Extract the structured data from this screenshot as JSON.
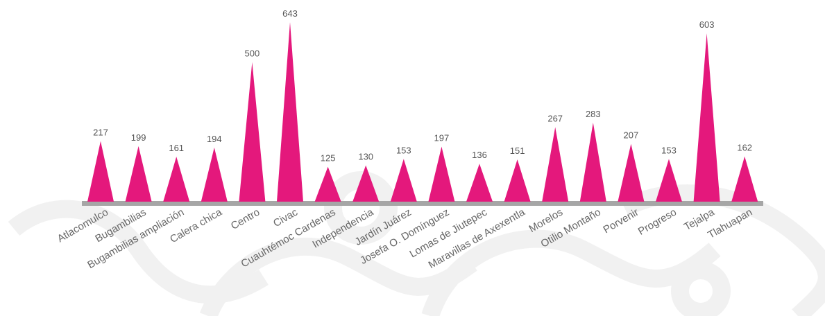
{
  "chart_data": {
    "type": "bar",
    "categories": [
      "Atlacomulco",
      "Bugambilias",
      "Bugambilias ampliación",
      "Calera chica",
      "Centro",
      "Civac",
      "Cuauhtémoc Cardenas",
      "Independencia",
      "Jardín Juárez",
      "Josefa O. Domínguez",
      "Lomas de Jiutepec",
      "Maravillas de Axexentla",
      "Morelos",
      "Otilio Montaño",
      "Porvenir",
      "Progreso",
      "Tejalpa",
      "Tlahuapan"
    ],
    "values": [
      217,
      199,
      161,
      194,
      500,
      643,
      125,
      130,
      153,
      197,
      136,
      151,
      267,
      283,
      207,
      153,
      603,
      162
    ],
    "color": "#e4187c"
  }
}
